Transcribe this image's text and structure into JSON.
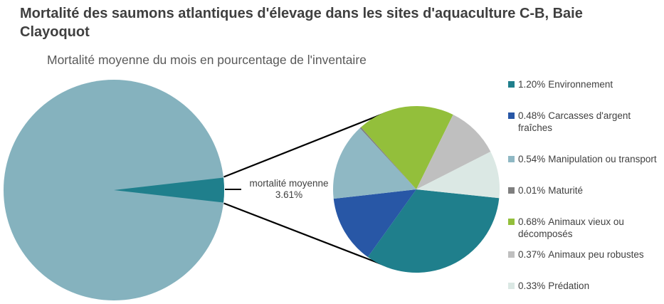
{
  "header": {
    "title": "Mortalité des saumons atlantiques d'élevage dans les sites d'aquaculture C-B, Baie Clayoquot",
    "subtitle": "Mortalité moyenne du mois en pourcentage de l'inventaire"
  },
  "chart_data": {
    "type": "pie",
    "variant": "pie-of-pie",
    "title": "Mortalité moyenne du mois en pourcentage de l'inventaire",
    "units": "percent of monthly inventory",
    "callout": {
      "line1": "mortalité moyenne",
      "line2": "3.61%"
    },
    "main_pie": {
      "remainder_percent": 96.39,
      "remainder_color": "#85B2BE",
      "detail_total_percent": 3.61,
      "detail_color": "#1F7F8C",
      "detail_start_angle_deg": 83.5
    },
    "secondary_pie": {
      "start_angle_deg": 96,
      "total_percent": 3.61,
      "slices": [
        {
          "label": "Environnement",
          "value": 1.2,
          "display": "1.20%",
          "color": "#1F7F8C"
        },
        {
          "label": "Carcasses d'argent fraîches",
          "value": 0.48,
          "display": "0.48%",
          "color": "#2857A6"
        },
        {
          "label": "Manipulation ou transport",
          "value": 0.54,
          "display": "0.54%",
          "color": "#8FB8C4"
        },
        {
          "label": "Maturité",
          "value": 0.01,
          "display": "0.01%",
          "color": "#7F7F7F"
        },
        {
          "label": "Animaux vieux ou décomposés",
          "value": 0.68,
          "display": "0.68%",
          "color": "#93BF3B"
        },
        {
          "label": "Animaux peu robustes",
          "value": 0.37,
          "display": "0.37%",
          "color": "#BFBFBF"
        },
        {
          "label": "Prédation",
          "value": 0.33,
          "display": "0.33%",
          "color": "#DBE8E4"
        }
      ]
    },
    "legend_position": "right",
    "connector_color": "#000000"
  }
}
